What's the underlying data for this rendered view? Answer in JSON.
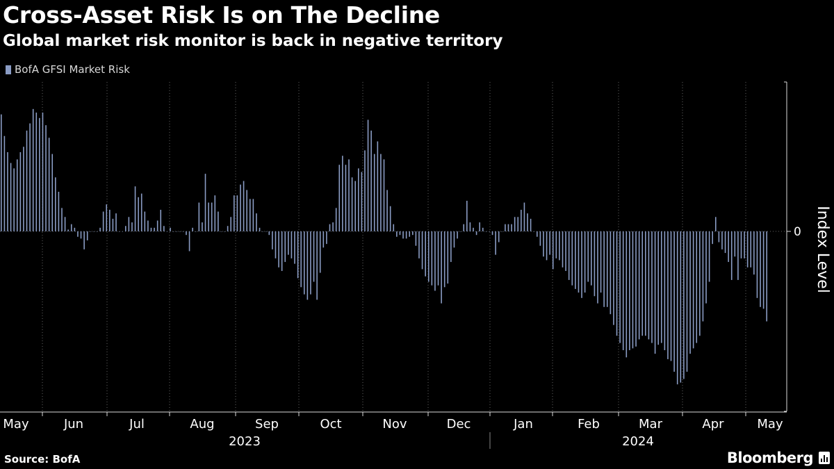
{
  "title": "Cross-Asset Risk Is on The Decline",
  "subtitle": "Global market risk monitor is back in negative territory",
  "source": "Source: BofA",
  "brand": "Bloomberg",
  "colors": {
    "bar": "#8a9cc4",
    "background": "#000000",
    "text": "#ffffff",
    "grid": "#666666"
  },
  "chart_data": {
    "type": "bar",
    "title": "Cross-Asset Risk Is on The Decline",
    "subtitle": "Global market risk monitor is back in negative territory",
    "series": [
      {
        "name": "BofA GFSI Market Risk",
        "values": [
          0.65,
          0.53,
          0.44,
          0.38,
          0.35,
          0.4,
          0.44,
          0.47,
          0.56,
          0.6,
          0.68,
          0.66,
          0.63,
          0.66,
          0.59,
          0.52,
          0.43,
          0.3,
          0.22,
          0.13,
          0.08,
          0.01,
          0.04,
          0.02,
          -0.03,
          -0.04,
          -0.1,
          -0.05,
          0.0,
          0.0,
          0.0,
          0.02,
          0.11,
          0.15,
          0.12,
          0.07,
          0.1,
          0.0,
          0.0,
          0.03,
          0.08,
          0.05,
          0.25,
          0.19,
          0.21,
          0.11,
          0.06,
          0.02,
          0.02,
          0.06,
          0.12,
          0.03,
          0.0,
          0.02,
          0.0,
          0.0,
          0.0,
          0.0,
          -0.02,
          -0.11,
          0.02,
          0.0,
          0.16,
          0.05,
          0.32,
          0.16,
          0.16,
          0.2,
          0.11,
          0.0,
          0.0,
          0.03,
          0.08,
          0.2,
          0.2,
          0.26,
          0.28,
          0.23,
          0.18,
          0.18,
          0.1,
          0.02,
          0.0,
          0.0,
          -0.02,
          -0.1,
          -0.15,
          -0.2,
          -0.22,
          -0.17,
          -0.13,
          -0.15,
          -0.18,
          -0.26,
          -0.31,
          -0.35,
          -0.38,
          -0.35,
          -0.28,
          -0.38,
          -0.23,
          -0.09,
          -0.07,
          0.04,
          0.05,
          0.13,
          0.37,
          0.42,
          0.37,
          0.4,
          0.3,
          0.28,
          0.35,
          0.33,
          0.45,
          0.62,
          0.56,
          0.43,
          0.5,
          0.43,
          0.4,
          0.23,
          0.14,
          0.04,
          -0.03,
          -0.02,
          -0.04,
          -0.04,
          -0.03,
          -0.02,
          -0.08,
          -0.15,
          -0.21,
          -0.25,
          -0.28,
          -0.3,
          -0.33,
          -0.3,
          -0.4,
          -0.31,
          -0.29,
          -0.17,
          -0.09,
          -0.04,
          0.0,
          0.04,
          0.17,
          0.05,
          0.02,
          -0.02,
          0.05,
          0.02,
          0.0,
          0.0,
          -0.02,
          -0.13,
          -0.06,
          0.0,
          0.04,
          0.04,
          0.04,
          0.08,
          0.08,
          0.12,
          0.16,
          0.1,
          0.07,
          0.0,
          -0.03,
          -0.08,
          -0.14,
          -0.16,
          -0.13,
          -0.21,
          -0.15,
          -0.16,
          -0.2,
          -0.22,
          -0.27,
          -0.3,
          -0.32,
          -0.34,
          -0.37,
          -0.34,
          -0.28,
          -0.3,
          -0.36,
          -0.4,
          -0.34,
          -0.42,
          -0.42,
          -0.46,
          -0.52,
          -0.58,
          -0.62,
          -0.66,
          -0.7,
          -0.66,
          -0.65,
          -0.64,
          -0.6,
          -0.58,
          -0.58,
          -0.6,
          -0.62,
          -0.68,
          -0.63,
          -0.62,
          -0.66,
          -0.71,
          -0.72,
          -0.78,
          -0.85,
          -0.84,
          -0.82,
          -0.78,
          -0.68,
          -0.65,
          -0.62,
          -0.58,
          -0.5,
          -0.4,
          -0.28,
          -0.07,
          0.08,
          -0.06,
          -0.1,
          -0.12,
          -0.17,
          -0.27,
          -0.14,
          -0.27,
          -0.15,
          -0.15,
          -0.2,
          -0.2,
          -0.24,
          -0.37,
          -0.42,
          -0.43,
          -0.5
        ]
      }
    ],
    "x_labels": [
      "May",
      "Jun",
      "Jul",
      "Aug",
      "Sep",
      "Oct",
      "Nov",
      "Dec",
      "Jan",
      "Feb",
      "Mar",
      "Apr",
      "May"
    ],
    "year_labels": [
      "2023",
      "2024"
    ],
    "xlabel": "",
    "ylabel": "Index Level",
    "y_ticks": [
      0
    ],
    "ylim": [
      -1.0,
      0.83
    ],
    "legend_position": "top-left",
    "grid": "vertical dotted at month boundaries"
  }
}
